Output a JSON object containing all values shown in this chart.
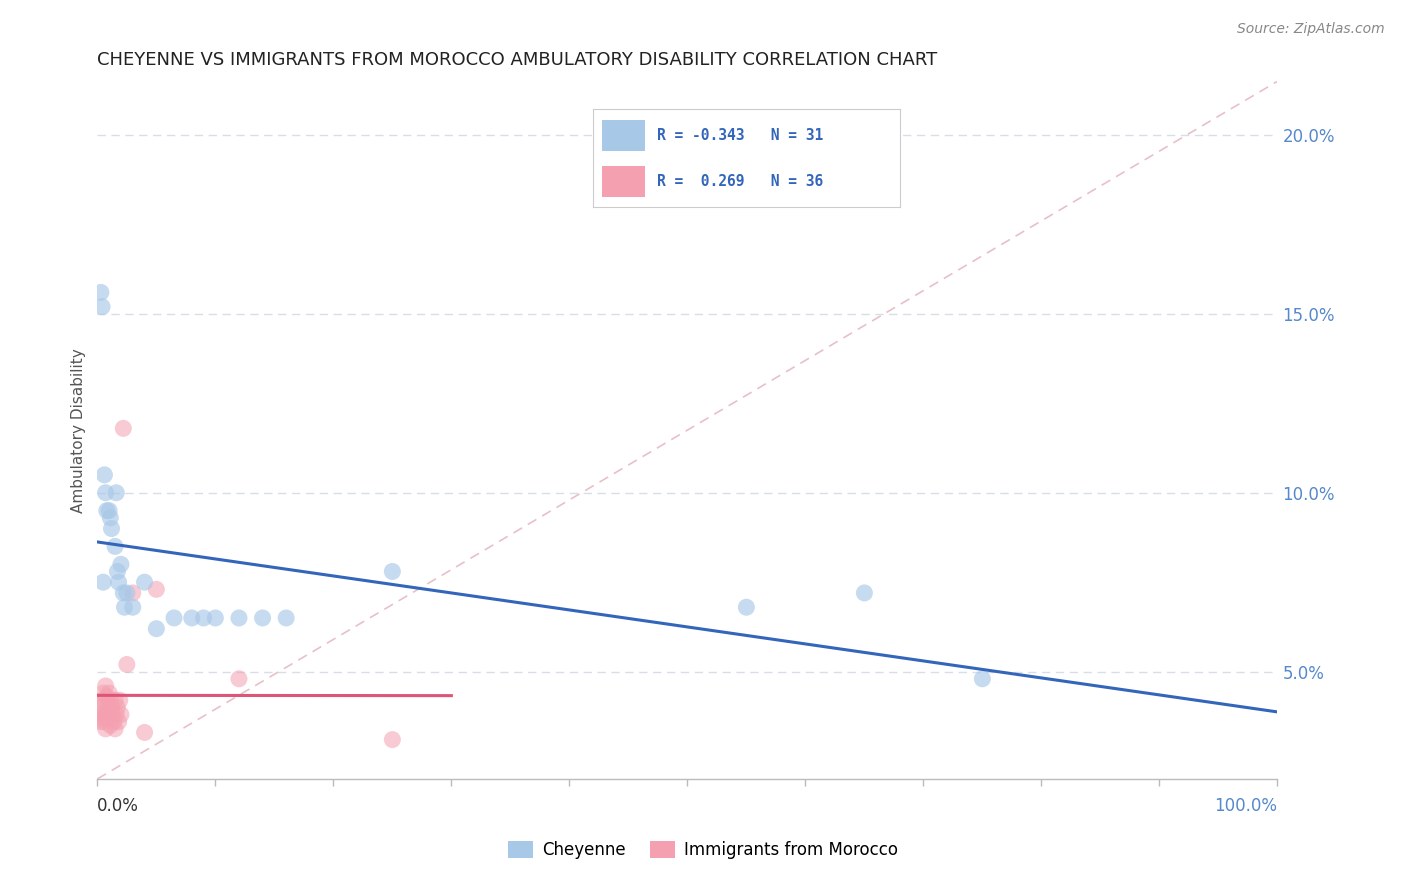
{
  "title": "CHEYENNE VS IMMIGRANTS FROM MOROCCO AMBULATORY DISABILITY CORRELATION CHART",
  "source": "Source: ZipAtlas.com",
  "ylabel": "Ambulatory Disability",
  "legend_blue_r": "-0.343",
  "legend_blue_n": "31",
  "legend_pink_r": "0.269",
  "legend_pink_n": "36",
  "legend_label_blue": "Cheyenne",
  "legend_label_pink": "Immigrants from Morocco",
  "blue_color": "#a8c8e8",
  "pink_color": "#f4a0b0",
  "blue_line_color": "#3366bb",
  "pink_line_color": "#dd5577",
  "ref_line_color": "#e8c0c8",
  "grid_color": "#d8dde8",
  "background_color": "#ffffff",
  "cheyenne_x": [
    0.003,
    0.004,
    0.005,
    0.006,
    0.007,
    0.008,
    0.01,
    0.012,
    0.015,
    0.016,
    0.018,
    0.02,
    0.022,
    0.025,
    0.03,
    0.04,
    0.05,
    0.065,
    0.08,
    0.09,
    0.1,
    0.12,
    0.14,
    0.16,
    0.55,
    0.65,
    0.75,
    0.25,
    0.017,
    0.011,
    0.023
  ],
  "cheyenne_y": [
    0.156,
    0.152,
    0.075,
    0.105,
    0.1,
    0.095,
    0.095,
    0.09,
    0.085,
    0.1,
    0.075,
    0.08,
    0.072,
    0.072,
    0.068,
    0.075,
    0.062,
    0.065,
    0.065,
    0.065,
    0.065,
    0.065,
    0.065,
    0.065,
    0.068,
    0.072,
    0.048,
    0.078,
    0.078,
    0.093,
    0.068
  ],
  "morocco_x": [
    0.002,
    0.003,
    0.003,
    0.004,
    0.004,
    0.005,
    0.005,
    0.006,
    0.006,
    0.007,
    0.007,
    0.008,
    0.008,
    0.009,
    0.009,
    0.01,
    0.01,
    0.011,
    0.011,
    0.012,
    0.013,
    0.014,
    0.015,
    0.015,
    0.016,
    0.017,
    0.018,
    0.019,
    0.02,
    0.022,
    0.025,
    0.03,
    0.04,
    0.05,
    0.12,
    0.25
  ],
  "morocco_y": [
    0.04,
    0.038,
    0.036,
    0.037,
    0.042,
    0.038,
    0.044,
    0.036,
    0.042,
    0.034,
    0.046,
    0.038,
    0.043,
    0.037,
    0.04,
    0.038,
    0.044,
    0.035,
    0.042,
    0.04,
    0.038,
    0.036,
    0.034,
    0.042,
    0.038,
    0.04,
    0.036,
    0.042,
    0.038,
    0.118,
    0.052,
    0.072,
    0.033,
    0.073,
    0.048,
    0.031
  ],
  "ylim_min": 0.02,
  "ylim_max": 0.215,
  "xlim_min": 0.0,
  "xlim_max": 1.0,
  "yticks": [
    0.05,
    0.1,
    0.15,
    0.2
  ],
  "ytick_labels": [
    "5.0%",
    "10.0%",
    "15.0%",
    "20.0%"
  ],
  "xtick_positions": [
    0.0,
    0.1,
    0.2,
    0.3,
    0.4,
    0.5,
    0.6,
    0.7,
    0.8,
    0.9,
    1.0
  ]
}
